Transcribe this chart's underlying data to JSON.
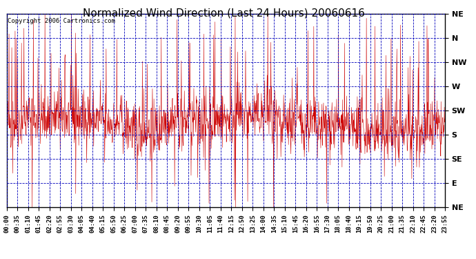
{
  "title": "Normalized Wind Direction (Last 24 Hours) 20060616",
  "copyright": "Copyright 2006 Cartronics.com",
  "background_color": "#ffffff",
  "plot_bg_color": "#ffffff",
  "line_color": "#cc0000",
  "grid_color": "#0000bb",
  "ytick_labels": [
    "NE",
    "N",
    "NW",
    "W",
    "SW",
    "S",
    "SE",
    "E",
    "NE"
  ],
  "ytick_values": [
    1.0,
    0.875,
    0.75,
    0.625,
    0.5,
    0.375,
    0.25,
    0.125,
    0.0
  ],
  "xtick_labels": [
    "00:00",
    "00:35",
    "01:10",
    "01:45",
    "02:20",
    "02:55",
    "03:30",
    "04:05",
    "04:40",
    "05:15",
    "05:50",
    "06:25",
    "07:00",
    "07:35",
    "08:10",
    "08:45",
    "09:20",
    "09:55",
    "10:30",
    "11:05",
    "11:40",
    "12:15",
    "12:50",
    "13:25",
    "14:00",
    "14:35",
    "15:10",
    "15:45",
    "16:20",
    "16:55",
    "17:30",
    "18:05",
    "18:40",
    "19:15",
    "19:50",
    "20:25",
    "21:00",
    "21:35",
    "22:10",
    "22:45",
    "23:20",
    "23:55"
  ],
  "seed": 42,
  "n_points": 1440,
  "ylim": [
    0.0,
    1.0
  ],
  "title_fontsize": 11,
  "tick_fontsize": 6.5,
  "copyright_fontsize": 6.5,
  "ytick_fontsize": 8
}
